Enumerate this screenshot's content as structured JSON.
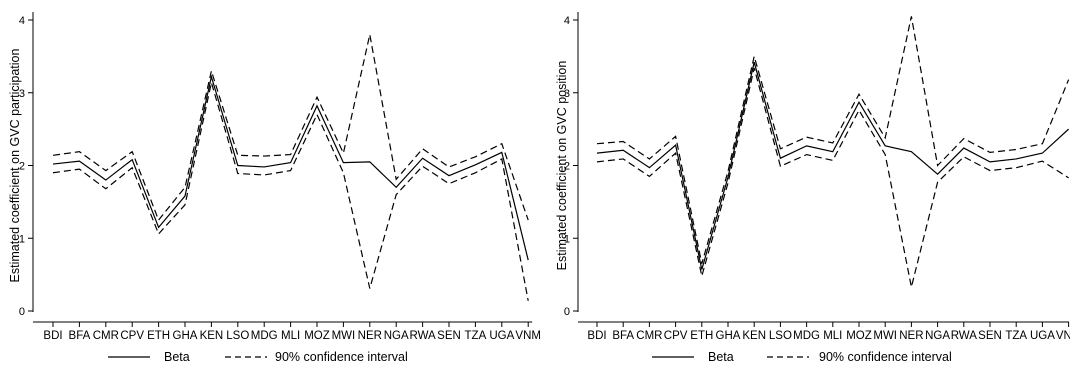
{
  "chart_data": [
    {
      "type": "line",
      "ylabel": "Estimated coefficient on GVC participation",
      "xlabel": "",
      "categories": [
        "BDI",
        "BFA",
        "CMR",
        "CPV",
        "ETH",
        "GHA",
        "KEN",
        "LSO",
        "MDG",
        "MLI",
        "MOZ",
        "MWI",
        "NER",
        "NGA",
        "RWA",
        "SEN",
        "TZA",
        "UGA",
        "VNM"
      ],
      "ylim": [
        0,
        4
      ],
      "yticks": [
        "0",
        "1",
        "2",
        "3",
        "4"
      ],
      "grid": false,
      "legend_position": "bottom",
      "series": [
        {
          "name": "Beta",
          "style": "solid",
          "values": [
            2.02,
            2.06,
            1.8,
            2.08,
            1.15,
            1.58,
            3.22,
            2.0,
            1.98,
            2.04,
            2.82,
            2.04,
            2.05,
            1.7,
            2.1,
            1.86,
            2.01,
            2.18,
            0.7
          ]
        },
        {
          "name": "90% confidence interval",
          "style": "dashed",
          "values": [
            2.14,
            2.19,
            1.93,
            2.19,
            1.25,
            1.7,
            3.3,
            2.14,
            2.13,
            2.15,
            2.94,
            2.17,
            3.8,
            1.81,
            2.23,
            1.98,
            2.12,
            2.3,
            1.25
          ]
        },
        {
          "name": "90% confidence interval",
          "style": "dashed",
          "values": [
            1.9,
            1.95,
            1.68,
            1.97,
            1.06,
            1.46,
            3.14,
            1.89,
            1.87,
            1.93,
            2.7,
            1.9,
            0.31,
            1.6,
            1.99,
            1.75,
            1.9,
            2.09,
            0.14
          ]
        }
      ]
    },
    {
      "type": "line",
      "ylabel": "Estimated coefficient on GVC position",
      "xlabel": "",
      "categories": [
        "BDI",
        "BFA",
        "CMR",
        "CPV",
        "ETH",
        "GHA",
        "KEN",
        "LSO",
        "MDG",
        "MLI",
        "MOZ",
        "MWI",
        "NER",
        "NGA",
        "RWA",
        "SEN",
        "TZA",
        "UGA",
        "VNM"
      ],
      "ylim": [
        0,
        4
      ],
      "yticks": [
        "0",
        "1",
        "2",
        "3",
        "4"
      ],
      "grid": false,
      "legend_position": "bottom",
      "series": [
        {
          "name": "Beta",
          "style": "solid",
          "values": [
            2.17,
            2.21,
            1.97,
            2.28,
            0.57,
            1.84,
            3.42,
            2.1,
            2.27,
            2.19,
            2.87,
            2.27,
            2.19,
            1.88,
            2.24,
            2.05,
            2.09,
            2.17,
            2.5
          ]
        },
        {
          "name": "90% confidence interval",
          "style": "dashed",
          "values": [
            2.3,
            2.33,
            2.09,
            2.4,
            0.65,
            1.92,
            3.5,
            2.23,
            2.39,
            2.31,
            2.98,
            2.38,
            4.05,
            2.0,
            2.37,
            2.18,
            2.22,
            2.3,
            3.18
          ]
        },
        {
          "name": "90% confidence interval",
          "style": "dashed",
          "values": [
            2.05,
            2.09,
            1.85,
            2.17,
            0.48,
            1.76,
            3.34,
            1.99,
            2.15,
            2.07,
            2.76,
            2.15,
            0.33,
            1.77,
            2.12,
            1.93,
            1.97,
            2.06,
            1.83
          ]
        }
      ]
    }
  ],
  "legend": {
    "beta_label": "Beta",
    "ci_label": "90% confidence interval"
  }
}
